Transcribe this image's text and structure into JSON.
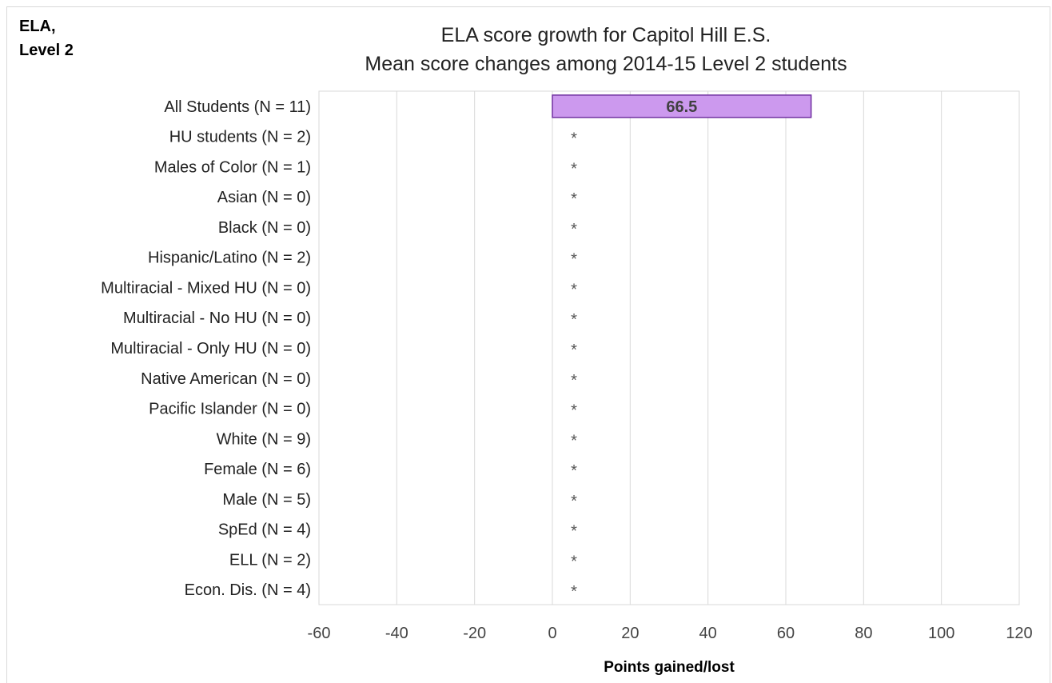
{
  "corner_label": [
    "ELA,",
    "Level 2"
  ],
  "chart_data": {
    "type": "bar",
    "orientation": "horizontal",
    "title": [
      "ELA score growth for Capitol Hill E.S.",
      "Mean score changes among 2014-15 Level 2 students"
    ],
    "xlabel": "Points gained/lost",
    "ylabel": "",
    "xlim": [
      -60,
      120
    ],
    "xticks": [
      -60,
      -40,
      -20,
      0,
      20,
      40,
      60,
      80,
      100,
      120
    ],
    "grid": true,
    "legend": "none",
    "bar_color": "#cc99ee",
    "bar_edge_color": "#7030a0",
    "categories": [
      "All Students (N = 11)",
      "HU students (N = 2)",
      "Males of Color (N = 1)",
      "Asian (N = 0)",
      "Black (N = 0)",
      "Hispanic/Latino (N = 2)",
      "Multiracial - Mixed HU (N = 0)",
      "Multiracial - No HU (N = 0)",
      "Multiracial - Only HU (N = 0)",
      "Native American (N = 0)",
      "Pacific Islander (N = 0)",
      "White (N = 9)",
      "Female (N = 6)",
      "Male (N = 5)",
      "SpEd (N = 4)",
      "ELL (N = 2)",
      "Econ. Dis. (N = 4)"
    ],
    "values": [
      66.5,
      null,
      null,
      null,
      null,
      null,
      null,
      null,
      null,
      null,
      null,
      null,
      null,
      null,
      null,
      null,
      null
    ],
    "data_labels": [
      "66.5",
      "*",
      "*",
      "*",
      "*",
      "*",
      "*",
      "*",
      "*",
      "*",
      "*",
      "*",
      "*",
      "*",
      "*",
      "*",
      "*"
    ]
  }
}
